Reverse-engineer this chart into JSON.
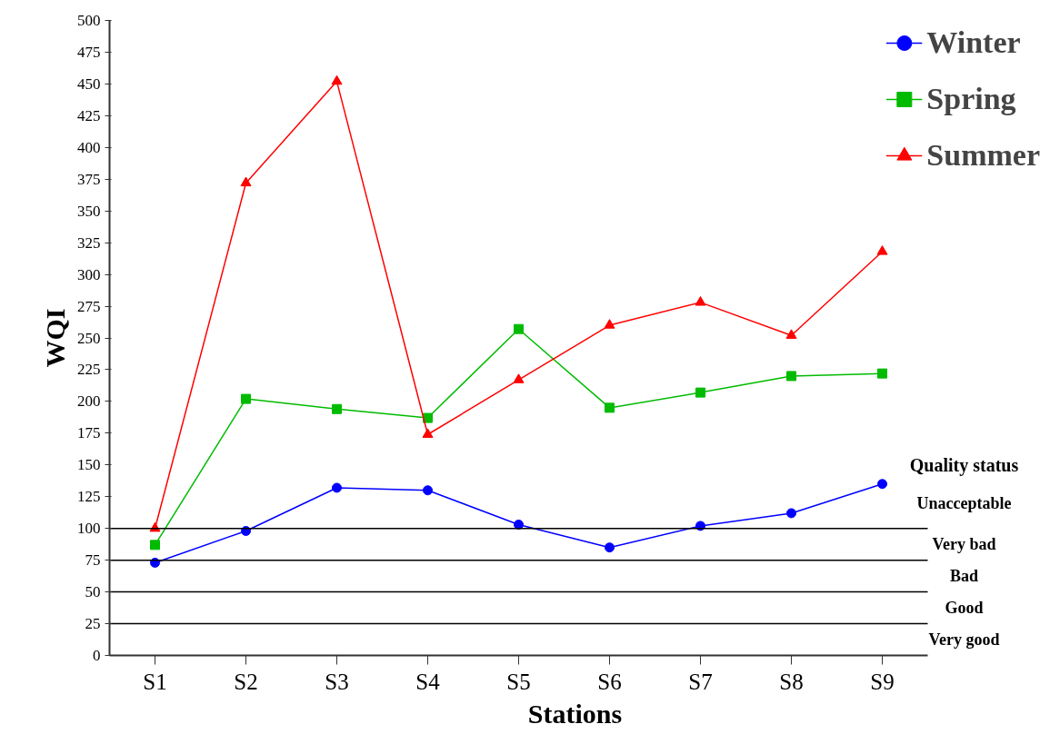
{
  "chart_data": {
    "type": "line",
    "xlabel": "Stations",
    "ylabel": "WQI",
    "categories": [
      "S1",
      "S2",
      "S3",
      "S4",
      "S5",
      "S6",
      "S7",
      "S8",
      "S9"
    ],
    "series": [
      {
        "name": "Winter",
        "color": "#0000ff",
        "marker": "circle",
        "values": [
          73,
          98,
          132,
          130,
          103,
          85,
          102,
          112,
          135
        ]
      },
      {
        "name": "Spring",
        "color": "#00bb00",
        "marker": "square",
        "values": [
          87,
          202,
          194,
          187,
          257,
          195,
          207,
          220,
          222
        ]
      },
      {
        "name": "Summer",
        "color": "#ff0000",
        "marker": "triangle",
        "values": [
          100,
          372,
          452,
          174,
          217,
          260,
          278,
          252,
          318
        ]
      }
    ],
    "ylim": [
      0,
      500
    ],
    "yticks": [
      0,
      25,
      50,
      75,
      100,
      125,
      150,
      175,
      200,
      225,
      250,
      275,
      300,
      325,
      350,
      375,
      400,
      425,
      450,
      475,
      500
    ],
    "grid": false,
    "legend": "top right",
    "line_style": "solid",
    "ref_lines": [
      {
        "axis": "y",
        "value": 100,
        "color": "#000000"
      },
      {
        "axis": "y",
        "value": 75,
        "color": "#000000"
      },
      {
        "axis": "y",
        "value": 50,
        "color": "#000000"
      },
      {
        "axis": "y",
        "value": 25,
        "color": "#000000"
      }
    ],
    "annotations": [
      "Quality status",
      "Unacceptable",
      "Very bad",
      "Bad",
      "Good",
      "Very good"
    ]
  }
}
